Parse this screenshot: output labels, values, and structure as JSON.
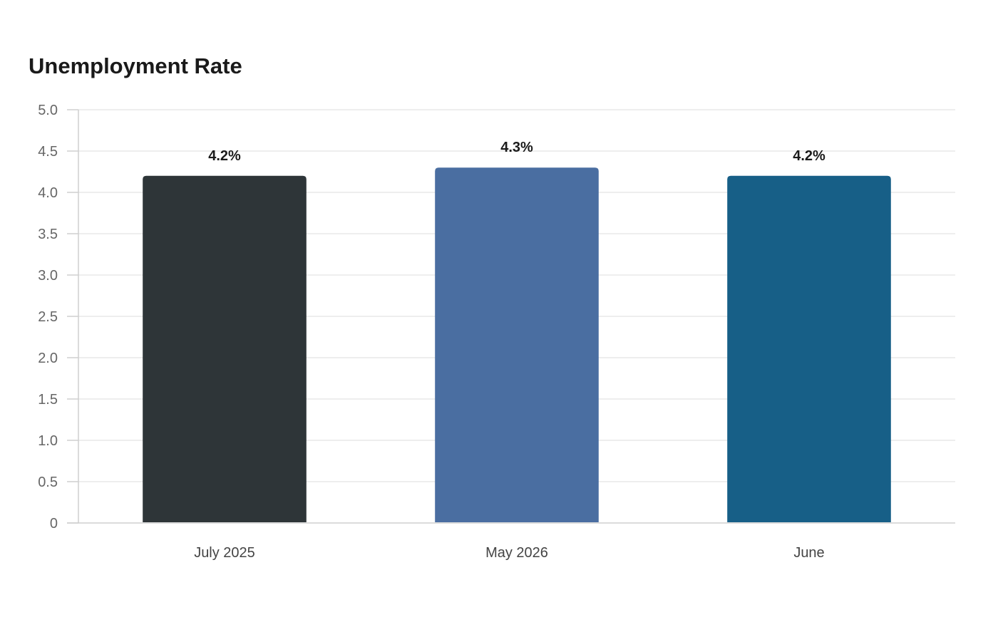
{
  "chart_data": {
    "type": "bar",
    "title": "Unemployment Rate",
    "categories": [
      "July 2025",
      "May 2026",
      "June"
    ],
    "values": [
      4.2,
      4.3,
      4.2
    ],
    "data_labels": [
      "4.2%",
      "4.3%",
      "4.2%"
    ],
    "bar_colors": [
      "#2e3538",
      "#4a6ea1",
      "#175f87"
    ],
    "ylim": [
      0,
      5.0
    ],
    "yticks": [
      "0",
      "0.5",
      "1.0",
      "1.5",
      "2.0",
      "2.5",
      "3.0",
      "3.5",
      "4.0",
      "4.5",
      "5.0"
    ],
    "grid": true,
    "legend": "none"
  }
}
